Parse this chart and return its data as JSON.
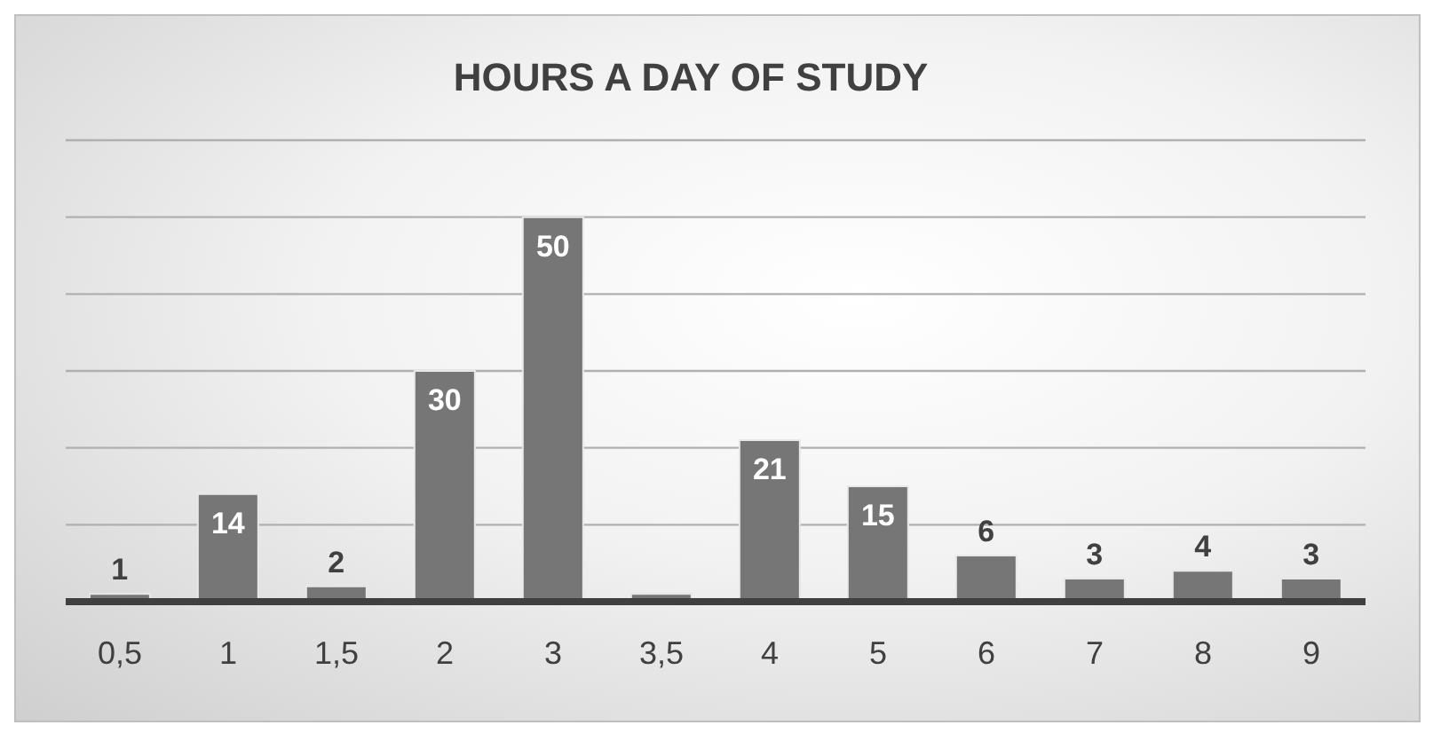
{
  "chart_data": {
    "type": "bar",
    "title": "HOURS A DAY OF STUDY",
    "categories": [
      "0,5",
      "1",
      "1,5",
      "2",
      "3",
      "3,5",
      "4",
      "5",
      "6",
      "7",
      "8",
      "9"
    ],
    "values": [
      1,
      14,
      2,
      30,
      50,
      1,
      21,
      15,
      6,
      3,
      4,
      3
    ],
    "value_labels": [
      "1",
      "14",
      "2",
      "30",
      "50",
      null,
      "21",
      "15",
      "6",
      "3",
      "4",
      "3"
    ],
    "color": "#767676",
    "ylim": [
      0,
      60
    ],
    "yticks": [
      {
        "value": 0,
        "label": null
      },
      {
        "value": 10,
        "label": null
      },
      {
        "value": 20,
        "label": null
      },
      {
        "value": 30,
        "label": null
      },
      {
        "value": 40,
        "label": null
      },
      {
        "value": 50,
        "label": null
      },
      {
        "value": 60,
        "label": null
      }
    ],
    "grid": "y",
    "tick_labels": "x"
  }
}
